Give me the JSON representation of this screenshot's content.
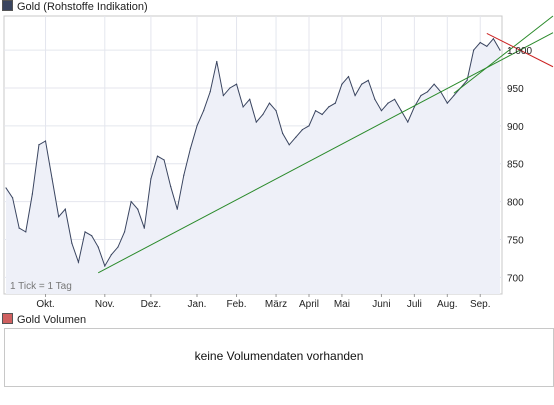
{
  "legend": {
    "price_label": "Gold (Rohstoffe Indikation)",
    "price_color": "#3a4560",
    "volume_label": "Gold Volumen",
    "volume_color": "#d06060"
  },
  "tick_note": "1 Tick = 1 Tag",
  "volume_message": "keine Volumendaten vorhanden",
  "colors": {
    "line": "#3a4560",
    "fill": "#eef0f8",
    "trend_up": "#2a8a2a",
    "trend_down": "#cc2222",
    "grid": "#e4e6ee"
  },
  "chart_data": {
    "type": "line",
    "series": [
      {
        "name": "Gold (Rohstoffe Indikation)"
      }
    ],
    "x_ticks": [
      "Okt.",
      "Nov.",
      "Dez.",
      "Jan.",
      "Feb.",
      "März",
      "April",
      "Mai",
      "Juni",
      "Juli",
      "Aug.",
      "Sep."
    ],
    "y_ticks": [
      700,
      750,
      800,
      850,
      900,
      950,
      "1.000"
    ],
    "ylim": [
      678,
      1045
    ],
    "grid": true,
    "x": [
      "Sep. 24",
      "Sep. 29",
      "Okt. 3",
      "Okt. 7",
      "Okt. 9",
      "Okt. 13",
      "Okt. 16",
      "Okt. 20",
      "Okt. 23",
      "Okt. 27",
      "Okt. 30",
      "Nov. 3",
      "Nov. 7",
      "Nov. 11",
      "Nov. 14",
      "Nov. 18",
      "Nov. 21",
      "Nov. 26",
      "Dez. 2",
      "Dez. 8",
      "Dez. 12",
      "Dez. 17",
      "Dez. 22",
      "Dez. 30",
      "Jan. 6",
      "Jan. 12",
      "Jan. 16",
      "Jan. 21",
      "Jan. 27",
      "Feb. 2",
      "Feb. 6",
      "Feb. 11",
      "Feb. 17",
      "Feb. 20",
      "Feb. 26",
      "März 2",
      "März 6",
      "März 10",
      "März 16",
      "März 20",
      "März 25",
      "März 31",
      "Apr. 3",
      "Apr. 9",
      "Apr. 15",
      "Apr. 21",
      "Apr. 27",
      "Mai 1",
      "Mai 6",
      "Mai 12",
      "Mai 18",
      "Mai 22",
      "Mai 28",
      "Juni 2",
      "Juni 5",
      "Juni 10",
      "Juni 15",
      "Juni 19",
      "Juni 24",
      "Juni 30",
      "Juli 6",
      "Juli 10",
      "Juli 15",
      "Juli 20",
      "Juli 27",
      "Aug. 3",
      "Aug. 7",
      "Aug. 12",
      "Aug. 18",
      "Aug. 24",
      "Aug. 28",
      "Sep. 2",
      "Sep. 7",
      "Sep. 11",
      "Sep. 15",
      "Sep. 17"
    ],
    "values": [
      818,
      805,
      765,
      760,
      810,
      875,
      880,
      830,
      780,
      790,
      745,
      720,
      760,
      755,
      740,
      715,
      730,
      740,
      760,
      800,
      790,
      765,
      830,
      860,
      855,
      820,
      790,
      835,
      870,
      900,
      920,
      945,
      985,
      940,
      950,
      955,
      925,
      935,
      905,
      915,
      930,
      920,
      890,
      875,
      885,
      895,
      900,
      920,
      915,
      925,
      930,
      955,
      965,
      940,
      955,
      960,
      935,
      920,
      930,
      935,
      920,
      905,
      925,
      940,
      945,
      955,
      945,
      930,
      940,
      950,
      960,
      1000,
      1010,
      1005,
      1015,
      1000
    ],
    "trendlines": [
      {
        "color": "green",
        "from": [
          "Nov. 14",
          706
        ],
        "to": [
          "Sep. 24",
          1023
        ]
      },
      {
        "color": "green",
        "from": [
          "Aug. 18",
          943
        ],
        "to": [
          "Sep. 24",
          1045
        ]
      },
      {
        "color": "red",
        "from": [
          "Sep. 11",
          1022
        ],
        "to": [
          "Sep. 24",
          978
        ]
      }
    ]
  }
}
